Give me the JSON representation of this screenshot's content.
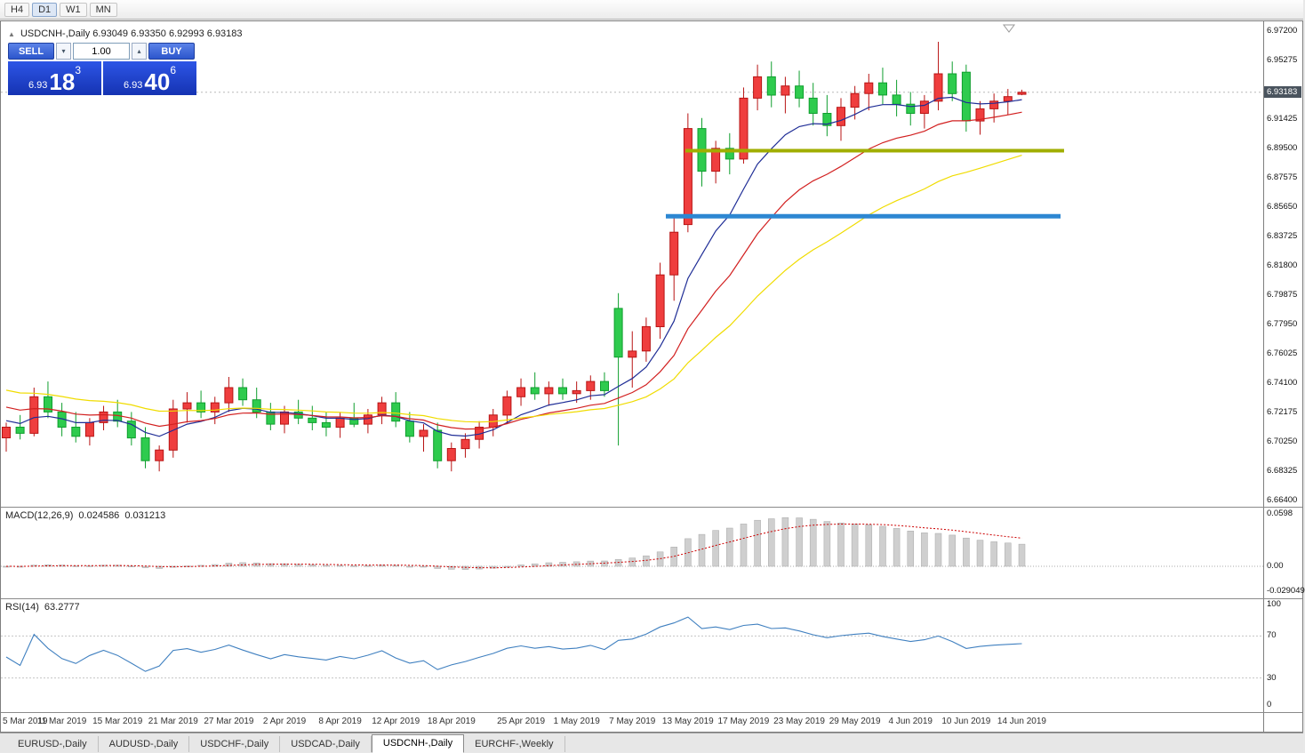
{
  "toolbar": {
    "timeframes": [
      {
        "label": "H4",
        "active": false
      },
      {
        "label": "D1",
        "active": true
      },
      {
        "label": "W1",
        "active": false
      },
      {
        "label": "MN",
        "active": false
      }
    ]
  },
  "chart": {
    "header": {
      "symbol": "USDCNH-,Daily",
      "open": "6.93049",
      "high": "6.93350",
      "low": "6.92993",
      "close": "6.93183"
    },
    "trade_panel": {
      "sell_label": "SELL",
      "buy_label": "BUY",
      "volume": "1.00",
      "sell_small": "6.93",
      "sell_big": "18",
      "sell_sup": "3",
      "buy_small": "6.93",
      "buy_big": "40",
      "buy_sup": "6"
    },
    "price_axis": {
      "current": "6.93183",
      "box_color": "#4a545e"
    }
  },
  "indicators": {
    "macd": {
      "name": "MACD(12,26,9)",
      "value1": "0.024586",
      "value2": "0.031213"
    },
    "rsi": {
      "name": "RSI(14)",
      "value": "63.2777"
    }
  },
  "tabs": [
    {
      "label": "EURUSD-,Daily",
      "active": false
    },
    {
      "label": "AUDUSD-,Daily",
      "active": false
    },
    {
      "label": "USDCHF-,Daily",
      "active": false
    },
    {
      "label": "USDCAD-,Daily",
      "active": false
    },
    {
      "label": "USDCNH-,Daily",
      "active": true
    },
    {
      "label": "EURCHF-,Weekly",
      "active": false
    }
  ],
  "chart_data": {
    "type": "candlestick",
    "title": "USDCNH-,Daily",
    "ylim": [
      6.6598,
      6.9784
    ],
    "current_price": 6.93183,
    "y_axis_labels": [
      "6.97200",
      "6.95275",
      "6.91425",
      "6.89500",
      "6.87575",
      "6.85650",
      "6.83725",
      "6.81800",
      "6.79875",
      "6.77950",
      "6.76025",
      "6.74100",
      "6.72175",
      "6.70250",
      "6.68325",
      "6.66400"
    ],
    "ohlc": [
      [
        6.705,
        6.715,
        6.696,
        6.712
      ],
      [
        6.712,
        6.72,
        6.704,
        6.708
      ],
      [
        6.708,
        6.738,
        6.706,
        6.732
      ],
      [
        6.732,
        6.742,
        6.718,
        6.722
      ],
      [
        6.722,
        6.728,
        6.706,
        6.712
      ],
      [
        6.712,
        6.722,
        6.702,
        6.706
      ],
      [
        6.706,
        6.718,
        6.7,
        6.715
      ],
      [
        6.715,
        6.726,
        6.71,
        6.722
      ],
      [
        6.722,
        6.73,
        6.712,
        6.716
      ],
      [
        6.716,
        6.722,
        6.7,
        6.705
      ],
      [
        6.705,
        6.712,
        6.685,
        6.69
      ],
      [
        6.69,
        6.7,
        6.683,
        6.697
      ],
      [
        6.697,
        6.73,
        6.692,
        6.724
      ],
      [
        6.724,
        6.735,
        6.715,
        6.728
      ],
      [
        6.728,
        6.736,
        6.718,
        6.722
      ],
      [
        6.722,
        6.732,
        6.714,
        6.728
      ],
      [
        6.728,
        6.745,
        6.722,
        6.738
      ],
      [
        6.738,
        6.744,
        6.726,
        6.73
      ],
      [
        6.73,
        6.738,
        6.718,
        6.722
      ],
      [
        6.722,
        6.728,
        6.71,
        6.714
      ],
      [
        6.714,
        6.726,
        6.708,
        6.722
      ],
      [
        6.722,
        6.73,
        6.714,
        6.718
      ],
      [
        6.718,
        6.726,
        6.71,
        6.715
      ],
      [
        6.715,
        6.722,
        6.706,
        6.712
      ],
      [
        6.712,
        6.722,
        6.705,
        6.718
      ],
      [
        6.718,
        6.728,
        6.712,
        6.714
      ],
      [
        6.714,
        6.724,
        6.708,
        6.72
      ],
      [
        6.72,
        6.732,
        6.714,
        6.728
      ],
      [
        6.728,
        6.735,
        6.712,
        6.716
      ],
      [
        6.716,
        6.722,
        6.702,
        6.706
      ],
      [
        6.706,
        6.714,
        6.696,
        6.71
      ],
      [
        6.71,
        6.715,
        6.685,
        6.69
      ],
      [
        6.69,
        6.702,
        6.683,
        6.698
      ],
      [
        6.698,
        6.708,
        6.692,
        6.704
      ],
      [
        6.704,
        6.716,
        6.698,
        6.712
      ],
      [
        6.712,
        6.724,
        6.706,
        6.72
      ],
      [
        6.72,
        6.736,
        6.714,
        6.732
      ],
      [
        6.732,
        6.744,
        6.726,
        6.738
      ],
      [
        6.738,
        6.748,
        6.73,
        6.734
      ],
      [
        6.734,
        6.742,
        6.726,
        6.738
      ],
      [
        6.738,
        6.744,
        6.73,
        6.734
      ],
      [
        6.734,
        6.742,
        6.728,
        6.736
      ],
      [
        6.736,
        6.746,
        6.73,
        6.742
      ],
      [
        6.742,
        6.748,
        6.732,
        6.736
      ],
      [
        6.79,
        6.8,
        6.7,
        6.758
      ],
      [
        6.758,
        6.775,
        6.738,
        6.762
      ],
      [
        6.762,
        6.784,
        6.755,
        6.778
      ],
      [
        6.778,
        6.82,
        6.77,
        6.812
      ],
      [
        6.812,
        6.85,
        6.795,
        6.84
      ],
      [
        6.845,
        6.918,
        6.84,
        6.908
      ],
      [
        6.908,
        6.915,
        6.87,
        6.88
      ],
      [
        6.88,
        6.9,
        6.872,
        6.895
      ],
      [
        6.895,
        6.905,
        6.878,
        6.888
      ],
      [
        6.888,
        6.935,
        6.885,
        6.928
      ],
      [
        6.928,
        6.95,
        6.92,
        6.942
      ],
      [
        6.942,
        6.952,
        6.922,
        6.93
      ],
      [
        6.93,
        6.942,
        6.918,
        6.936
      ],
      [
        6.936,
        6.946,
        6.922,
        6.928
      ],
      [
        6.928,
        6.938,
        6.91,
        6.918
      ],
      [
        6.918,
        6.93,
        6.903,
        6.91
      ],
      [
        6.91,
        6.928,
        6.9,
        6.922
      ],
      [
        6.922,
        6.936,
        6.914,
        6.931
      ],
      [
        6.931,
        6.944,
        6.92,
        6.938
      ],
      [
        6.938,
        6.948,
        6.924,
        6.93
      ],
      [
        6.93,
        6.94,
        6.916,
        6.924
      ],
      [
        6.924,
        6.932,
        6.91,
        6.918
      ],
      [
        6.918,
        6.93,
        6.908,
        6.926
      ],
      [
        6.926,
        6.965,
        6.92,
        6.944
      ],
      [
        6.944,
        6.952,
        6.926,
        6.931
      ],
      [
        6.945,
        6.95,
        6.906,
        6.913
      ],
      [
        6.913,
        6.926,
        6.904,
        6.921
      ],
      [
        6.921,
        6.931,
        6.912,
        6.926
      ],
      [
        6.926,
        6.934,
        6.917,
        6.929
      ],
      [
        6.93049,
        6.9335,
        6.92993,
        6.93183
      ]
    ],
    "x_ticks": [
      {
        "label": "5 Mar 2019",
        "i": 0
      },
      {
        "label": "11 Mar 2019",
        "i": 4
      },
      {
        "label": "15 Mar 2019",
        "i": 8
      },
      {
        "label": "21 Mar 2019",
        "i": 12
      },
      {
        "label": "27 Mar 2019",
        "i": 16
      },
      {
        "label": "2 Apr 2019",
        "i": 20
      },
      {
        "label": "8 Apr 2019",
        "i": 24
      },
      {
        "label": "12 Apr 2019",
        "i": 28
      },
      {
        "label": "18 Apr 2019",
        "i": 32
      },
      {
        "label": "25 Apr 2019",
        "i": 37
      },
      {
        "label": "1 May 2019",
        "i": 41
      },
      {
        "label": "7 May 2019",
        "i": 45
      },
      {
        "label": "13 May 2019",
        "i": 49
      },
      {
        "label": "17 May 2019",
        "i": 53
      },
      {
        "label": "23 May 2019",
        "i": 57
      },
      {
        "label": "29 May 2019",
        "i": 61
      },
      {
        "label": "4 Jun 2019",
        "i": 65
      },
      {
        "label": "10 Jun 2019",
        "i": 69
      },
      {
        "label": "14 Jun 2019",
        "i": 73
      }
    ],
    "colors": {
      "up": "#ef3e3e",
      "up_stroke": "#b81414",
      "down": "#2ecb4e",
      "down_stroke": "#0f9e2e",
      "ma_fast": "#1f2d96",
      "ma_mid": "#d22020",
      "ma_slow": "#f0dc00",
      "macd_bar": "#cfcfcf",
      "macd_signal": "#cc0000",
      "rsi": "#4080c0",
      "hline_olive": "#a0ae00",
      "hline_blue": "#2d87d2"
    },
    "mas": [
      {
        "period": 8,
        "start": 6.7175,
        "color_key": "ma_fast"
      },
      {
        "period": 16,
        "start": 6.727,
        "color_key": "ma_mid"
      },
      {
        "period": 30,
        "start": 6.738,
        "color_key": "ma_slow"
      }
    ],
    "hlines": [
      {
        "value": 6.8935,
        "color": "#a0ae00",
        "x1": 770,
        "x2": 1196,
        "w": 4
      },
      {
        "value": 6.8505,
        "color": "#2d87d2",
        "x1": 748,
        "x2": 1192,
        "w": 5
      }
    ],
    "macd": {
      "axis": [
        {
          "label": "0.0598",
          "v": 0.0598
        },
        {
          "label": "0.00",
          "v": 0
        },
        {
          "label": "-0.029049",
          "v": -0.029049
        }
      ],
      "zero_y": 66,
      "scale": 985
    },
    "rsi": {
      "axis": [
        {
          "label": "100",
          "v": 100
        },
        {
          "label": "70",
          "v": 70
        },
        {
          "label": "30",
          "v": 30
        },
        {
          "label": "0",
          "v": 0
        }
      ],
      "levels": [
        70,
        30
      ]
    }
  }
}
